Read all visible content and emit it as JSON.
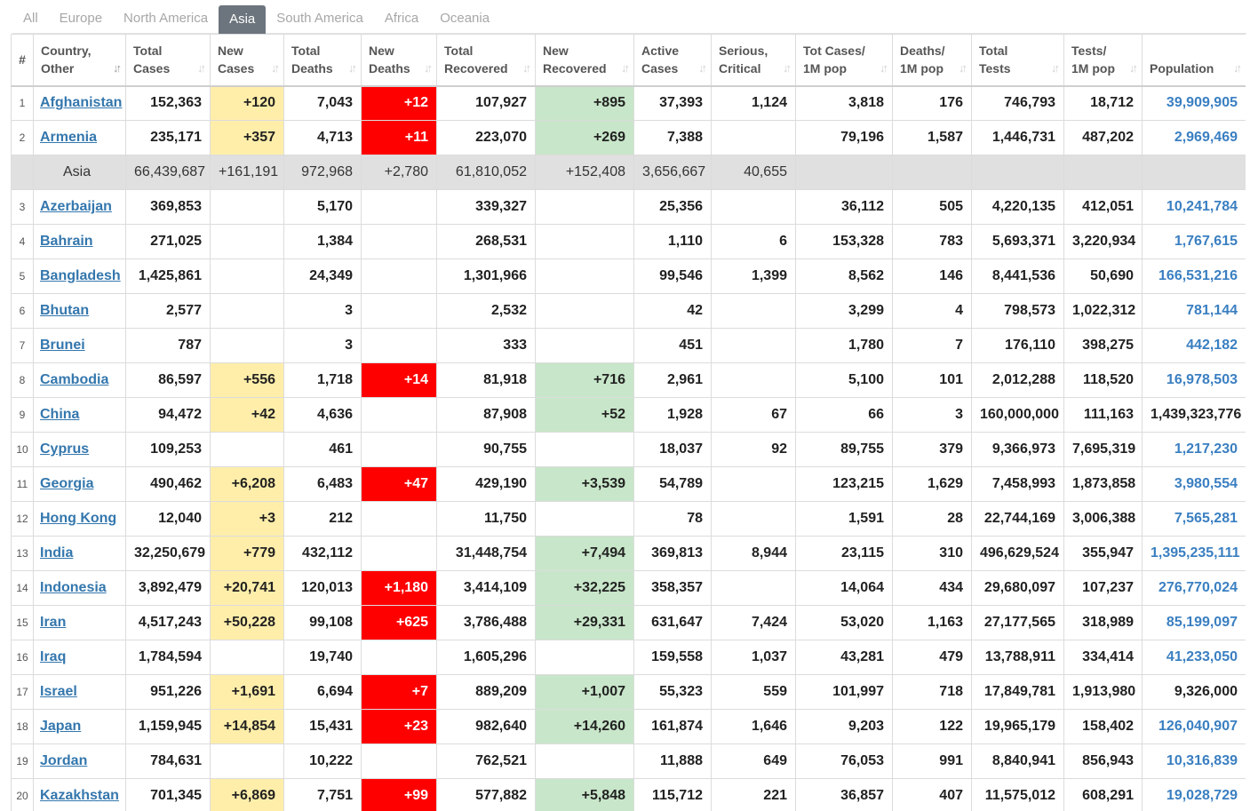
{
  "tabs": [
    "All",
    "Europe",
    "North America",
    "Asia",
    "South America",
    "Africa",
    "Oceania"
  ],
  "active_tab": "Asia",
  "headers": [
    {
      "l1": "#",
      "l2": ""
    },
    {
      "l1": "Country,",
      "l2": "Other"
    },
    {
      "l1": "Total",
      "l2": "Cases"
    },
    {
      "l1": "New",
      "l2": "Cases"
    },
    {
      "l1": "Total",
      "l2": "Deaths"
    },
    {
      "l1": "New",
      "l2": "Deaths"
    },
    {
      "l1": "Total",
      "l2": "Recovered"
    },
    {
      "l1": "New",
      "l2": "Recovered"
    },
    {
      "l1": "Active",
      "l2": "Cases"
    },
    {
      "l1": "Serious,",
      "l2": "Critical"
    },
    {
      "l1": "Tot Cases/",
      "l2": "1M pop"
    },
    {
      "l1": "Deaths/",
      "l2": "1M pop"
    },
    {
      "l1": "Total",
      "l2": "Tests"
    },
    {
      "l1": "Tests/",
      "l2": "1M pop"
    },
    {
      "l1": "Population",
      "l2": ""
    }
  ],
  "rows": [
    {
      "n": "1",
      "country": "Afghanistan",
      "tc": "152,363",
      "nc": "+120",
      "td": "7,043",
      "nd": "+12",
      "tr": "107,927",
      "nr": "+895",
      "ac": "37,393",
      "sc": "1,124",
      "cpm": "3,818",
      "dpm": "176",
      "tt": "746,793",
      "tpm": "18,712",
      "pop": "39,909,905"
    },
    {
      "n": "2",
      "country": "Armenia",
      "tc": "235,171",
      "nc": "+357",
      "td": "4,713",
      "nd": "+11",
      "tr": "223,070",
      "nr": "+269",
      "ac": "7,388",
      "sc": "",
      "cpm": "79,196",
      "dpm": "1,587",
      "tt": "1,446,731",
      "tpm": "487,202",
      "pop": "2,969,469"
    },
    {
      "region": true,
      "n": "",
      "country": "Asia",
      "tc": "66,439,687",
      "nc": "+161,191",
      "td": "972,968",
      "nd": "+2,780",
      "tr": "61,810,052",
      "nr": "+152,408",
      "ac": "3,656,667",
      "sc": "40,655",
      "cpm": "",
      "dpm": "",
      "tt": "",
      "tpm": "",
      "pop": ""
    },
    {
      "n": "3",
      "country": "Azerbaijan",
      "tc": "369,853",
      "nc": "",
      "td": "5,170",
      "nd": "",
      "tr": "339,327",
      "nr": "",
      "ac": "25,356",
      "sc": "",
      "cpm": "36,112",
      "dpm": "505",
      "tt": "4,220,135",
      "tpm": "412,051",
      "pop": "10,241,784"
    },
    {
      "n": "4",
      "country": "Bahrain",
      "tc": "271,025",
      "nc": "",
      "td": "1,384",
      "nd": "",
      "tr": "268,531",
      "nr": "",
      "ac": "1,110",
      "sc": "6",
      "cpm": "153,328",
      "dpm": "783",
      "tt": "5,693,371",
      "tpm": "3,220,934",
      "pop": "1,767,615"
    },
    {
      "n": "5",
      "country": "Bangladesh",
      "tc": "1,425,861",
      "nc": "",
      "td": "24,349",
      "nd": "",
      "tr": "1,301,966",
      "nr": "",
      "ac": "99,546",
      "sc": "1,399",
      "cpm": "8,562",
      "dpm": "146",
      "tt": "8,441,536",
      "tpm": "50,690",
      "pop": "166,531,216"
    },
    {
      "n": "6",
      "country": "Bhutan",
      "tc": "2,577",
      "nc": "",
      "td": "3",
      "nd": "",
      "tr": "2,532",
      "nr": "",
      "ac": "42",
      "sc": "",
      "cpm": "3,299",
      "dpm": "4",
      "tt": "798,573",
      "tpm": "1,022,312",
      "pop": "781,144"
    },
    {
      "n": "7",
      "country": "Brunei",
      "tc": "787",
      "nc": "",
      "td": "3",
      "nd": "",
      "tr": "333",
      "nr": "",
      "ac": "451",
      "sc": "",
      "cpm": "1,780",
      "dpm": "7",
      "tt": "176,110",
      "tpm": "398,275",
      "pop": "442,182"
    },
    {
      "n": "8",
      "country": "Cambodia",
      "tc": "86,597",
      "nc": "+556",
      "td": "1,718",
      "nd": "+14",
      "tr": "81,918",
      "nr": "+716",
      "ac": "2,961",
      "sc": "",
      "cpm": "5,100",
      "dpm": "101",
      "tt": "2,012,288",
      "tpm": "118,520",
      "pop": "16,978,503"
    },
    {
      "n": "9",
      "country": "China",
      "tc": "94,472",
      "nc": "+42",
      "td": "4,636",
      "nd": "",
      "tr": "87,908",
      "nr": "+52",
      "ac": "1,928",
      "sc": "67",
      "cpm": "66",
      "dpm": "3",
      "tt": "160,000,000",
      "tpm": "111,163",
      "pop": "1,439,323,776",
      "pop_plain": true
    },
    {
      "n": "10",
      "country": "Cyprus",
      "tc": "109,253",
      "nc": "",
      "td": "461",
      "nd": "",
      "tr": "90,755",
      "nr": "",
      "ac": "18,037",
      "sc": "92",
      "cpm": "89,755",
      "dpm": "379",
      "tt": "9,366,973",
      "tpm": "7,695,319",
      "pop": "1,217,230"
    },
    {
      "n": "11",
      "country": "Georgia",
      "tc": "490,462",
      "nc": "+6,208",
      "td": "6,483",
      "nd": "+47",
      "tr": "429,190",
      "nr": "+3,539",
      "ac": "54,789",
      "sc": "",
      "cpm": "123,215",
      "dpm": "1,629",
      "tt": "7,458,993",
      "tpm": "1,873,858",
      "pop": "3,980,554"
    },
    {
      "n": "12",
      "country": "Hong Kong",
      "tc": "12,040",
      "nc": "+3",
      "td": "212",
      "nd": "",
      "tr": "11,750",
      "nr": "",
      "ac": "78",
      "sc": "",
      "cpm": "1,591",
      "dpm": "28",
      "tt": "22,744,169",
      "tpm": "3,006,388",
      "pop": "7,565,281"
    },
    {
      "n": "13",
      "country": "India",
      "tc": "32,250,679",
      "nc": "+779",
      "td": "432,112",
      "nd": "",
      "tr": "31,448,754",
      "nr": "+7,494",
      "ac": "369,813",
      "sc": "8,944",
      "cpm": "23,115",
      "dpm": "310",
      "tt": "496,629,524",
      "tpm": "355,947",
      "pop": "1,395,235,111"
    },
    {
      "n": "14",
      "country": "Indonesia",
      "tc": "3,892,479",
      "nc": "+20,741",
      "td": "120,013",
      "nd": "+1,180",
      "tr": "3,414,109",
      "nr": "+32,225",
      "ac": "358,357",
      "sc": "",
      "cpm": "14,064",
      "dpm": "434",
      "tt": "29,680,097",
      "tpm": "107,237",
      "pop": "276,770,024"
    },
    {
      "n": "15",
      "country": "Iran",
      "tc": "4,517,243",
      "nc": "+50,228",
      "td": "99,108",
      "nd": "+625",
      "tr": "3,786,488",
      "nr": "+29,331",
      "ac": "631,647",
      "sc": "7,424",
      "cpm": "53,020",
      "dpm": "1,163",
      "tt": "27,177,565",
      "tpm": "318,989",
      "pop": "85,199,097"
    },
    {
      "n": "16",
      "country": "Iraq",
      "tc": "1,784,594",
      "nc": "",
      "td": "19,740",
      "nd": "",
      "tr": "1,605,296",
      "nr": "",
      "ac": "159,558",
      "sc": "1,037",
      "cpm": "43,281",
      "dpm": "479",
      "tt": "13,788,911",
      "tpm": "334,414",
      "pop": "41,233,050"
    },
    {
      "n": "17",
      "country": "Israel",
      "tc": "951,226",
      "nc": "+1,691",
      "td": "6,694",
      "nd": "+7",
      "tr": "889,209",
      "nr": "+1,007",
      "ac": "55,323",
      "sc": "559",
      "cpm": "101,997",
      "dpm": "718",
      "tt": "17,849,781",
      "tpm": "1,913,980",
      "pop": "9,326,000",
      "pop_plain": true
    },
    {
      "n": "18",
      "country": "Japan",
      "tc": "1,159,945",
      "nc": "+14,854",
      "td": "15,431",
      "nd": "+23",
      "tr": "982,640",
      "nr": "+14,260",
      "ac": "161,874",
      "sc": "1,646",
      "cpm": "9,203",
      "dpm": "122",
      "tt": "19,965,179",
      "tpm": "158,402",
      "pop": "126,040,907"
    },
    {
      "n": "19",
      "country": "Jordan",
      "tc": "784,631",
      "nc": "",
      "td": "10,222",
      "nd": "",
      "tr": "762,521",
      "nr": "",
      "ac": "11,888",
      "sc": "649",
      "cpm": "76,053",
      "dpm": "991",
      "tt": "8,840,941",
      "tpm": "856,943",
      "pop": "10,316,839"
    },
    {
      "n": "20",
      "country": "Kazakhstan",
      "tc": "701,345",
      "nc": "+6,869",
      "td": "7,751",
      "nd": "+99",
      "tr": "577,882",
      "nr": "+5,848",
      "ac": "115,712",
      "sc": "221",
      "cpm": "36,857",
      "dpm": "407",
      "tt": "11,575,012",
      "tpm": "608,291",
      "pop": "19,028,729"
    }
  ],
  "colors": {
    "new_cases_bg": "#ffeeaa",
    "new_deaths_bg": "#ff0000",
    "new_recovered_bg": "#c8e6c9",
    "region_row_bg": "#e0e0e0",
    "link": "#3477ad",
    "active_tab_bg": "#6c757d"
  }
}
